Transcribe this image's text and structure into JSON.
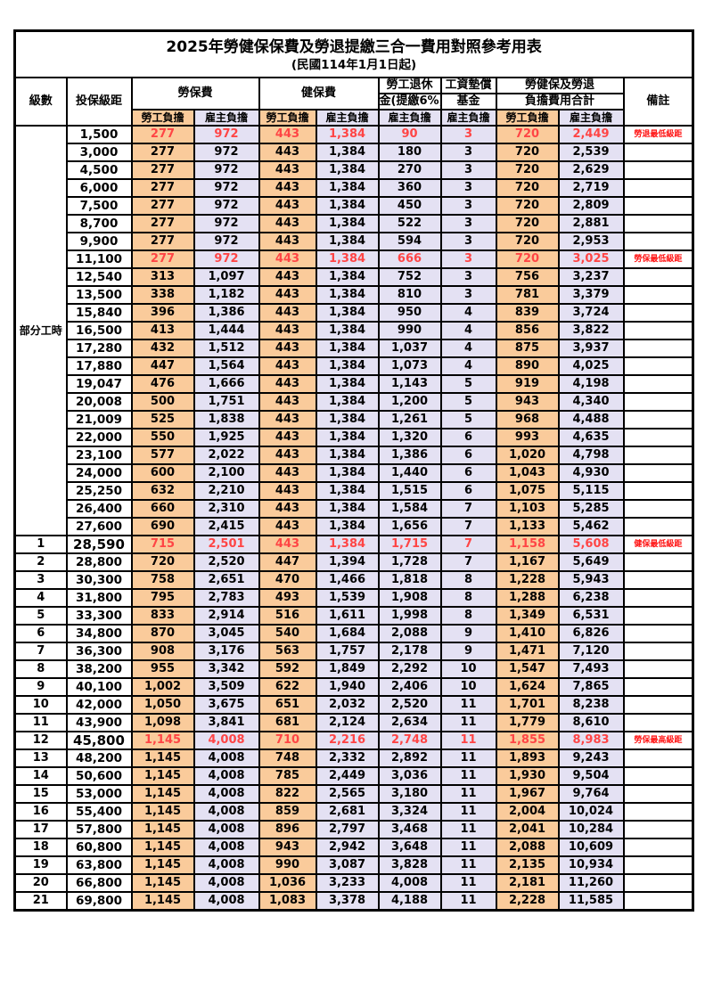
{
  "title": "2025年勞健保保費及勞退提繳三合一費用對照參考用表",
  "subtitle": "(民國114年1月1日起)",
  "header": {
    "level": "級數",
    "bracket": "投保級距",
    "labor_insurance": "勞保費",
    "health_insurance": "健保費",
    "pension_line1": "勞工退休",
    "pension_line2": "金(提繳6%)",
    "wage_fund_line1": "工資墊償",
    "wage_fund_line2": "基金",
    "total_line1": "勞健保及勞退",
    "total_line2": "負擔費用合計",
    "remark": "備註",
    "employee_share": "勞工負擔",
    "employer_share": "雇主負擔"
  },
  "part_time_label": "部分工時",
  "colors": {
    "employee_col_bg": "#FACB9B",
    "employer_col_bg": "#E4E1F3",
    "highlight_value": "#ff4545",
    "remark_red": "#ff1111",
    "border": "#000000"
  },
  "rows": [
    {
      "level": "",
      "bracket": "1,500",
      "li_emp": "277",
      "li_er": "972",
      "hi_emp": "443",
      "hi_er": "1,384",
      "pension": "90",
      "fund": "3",
      "tot_emp": "720",
      "tot_er": "2,449",
      "remark": "勞退最低級距",
      "highlight": true,
      "bold_bracket": false
    },
    {
      "level": "",
      "bracket": "3,000",
      "li_emp": "277",
      "li_er": "972",
      "hi_emp": "443",
      "hi_er": "1,384",
      "pension": "180",
      "fund": "3",
      "tot_emp": "720",
      "tot_er": "2,539",
      "remark": "",
      "highlight": false,
      "bold_bracket": false
    },
    {
      "level": "",
      "bracket": "4,500",
      "li_emp": "277",
      "li_er": "972",
      "hi_emp": "443",
      "hi_er": "1,384",
      "pension": "270",
      "fund": "3",
      "tot_emp": "720",
      "tot_er": "2,629",
      "remark": "",
      "highlight": false,
      "bold_bracket": false
    },
    {
      "level": "",
      "bracket": "6,000",
      "li_emp": "277",
      "li_er": "972",
      "hi_emp": "443",
      "hi_er": "1,384",
      "pension": "360",
      "fund": "3",
      "tot_emp": "720",
      "tot_er": "2,719",
      "remark": "",
      "highlight": false,
      "bold_bracket": false
    },
    {
      "level": "",
      "bracket": "7,500",
      "li_emp": "277",
      "li_er": "972",
      "hi_emp": "443",
      "hi_er": "1,384",
      "pension": "450",
      "fund": "3",
      "tot_emp": "720",
      "tot_er": "2,809",
      "remark": "",
      "highlight": false,
      "bold_bracket": false
    },
    {
      "level": "",
      "bracket": "8,700",
      "li_emp": "277",
      "li_er": "972",
      "hi_emp": "443",
      "hi_er": "1,384",
      "pension": "522",
      "fund": "3",
      "tot_emp": "720",
      "tot_er": "2,881",
      "remark": "",
      "highlight": false,
      "bold_bracket": false
    },
    {
      "level": "",
      "bracket": "9,900",
      "li_emp": "277",
      "li_er": "972",
      "hi_emp": "443",
      "hi_er": "1,384",
      "pension": "594",
      "fund": "3",
      "tot_emp": "720",
      "tot_er": "2,953",
      "remark": "",
      "highlight": false,
      "bold_bracket": false
    },
    {
      "level": "",
      "bracket": "11,100",
      "li_emp": "277",
      "li_er": "972",
      "hi_emp": "443",
      "hi_er": "1,384",
      "pension": "666",
      "fund": "3",
      "tot_emp": "720",
      "tot_er": "3,025",
      "remark": "勞保最低級距",
      "highlight": true,
      "bold_bracket": false
    },
    {
      "level": "",
      "bracket": "12,540",
      "li_emp": "313",
      "li_er": "1,097",
      "hi_emp": "443",
      "hi_er": "1,384",
      "pension": "752",
      "fund": "3",
      "tot_emp": "756",
      "tot_er": "3,237",
      "remark": "",
      "highlight": false,
      "bold_bracket": false
    },
    {
      "level": "",
      "bracket": "13,500",
      "li_emp": "338",
      "li_er": "1,182",
      "hi_emp": "443",
      "hi_er": "1,384",
      "pension": "810",
      "fund": "3",
      "tot_emp": "781",
      "tot_er": "3,379",
      "remark": "",
      "highlight": false,
      "bold_bracket": false
    },
    {
      "level": "",
      "bracket": "15,840",
      "li_emp": "396",
      "li_er": "1,386",
      "hi_emp": "443",
      "hi_er": "1,384",
      "pension": "950",
      "fund": "4",
      "tot_emp": "839",
      "tot_er": "3,724",
      "remark": "",
      "highlight": false,
      "bold_bracket": false
    },
    {
      "level": "",
      "bracket": "16,500",
      "li_emp": "413",
      "li_er": "1,444",
      "hi_emp": "443",
      "hi_er": "1,384",
      "pension": "990",
      "fund": "4",
      "tot_emp": "856",
      "tot_er": "3,822",
      "remark": "",
      "highlight": false,
      "bold_bracket": false
    },
    {
      "level": "",
      "bracket": "17,280",
      "li_emp": "432",
      "li_er": "1,512",
      "hi_emp": "443",
      "hi_er": "1,384",
      "pension": "1,037",
      "fund": "4",
      "tot_emp": "875",
      "tot_er": "3,937",
      "remark": "",
      "highlight": false,
      "bold_bracket": false
    },
    {
      "level": "",
      "bracket": "17,880",
      "li_emp": "447",
      "li_er": "1,564",
      "hi_emp": "443",
      "hi_er": "1,384",
      "pension": "1,073",
      "fund": "4",
      "tot_emp": "890",
      "tot_er": "4,025",
      "remark": "",
      "highlight": false,
      "bold_bracket": false
    },
    {
      "level": "",
      "bracket": "19,047",
      "li_emp": "476",
      "li_er": "1,666",
      "hi_emp": "443",
      "hi_er": "1,384",
      "pension": "1,143",
      "fund": "5",
      "tot_emp": "919",
      "tot_er": "4,198",
      "remark": "",
      "highlight": false,
      "bold_bracket": false
    },
    {
      "level": "",
      "bracket": "20,008",
      "li_emp": "500",
      "li_er": "1,751",
      "hi_emp": "443",
      "hi_er": "1,384",
      "pension": "1,200",
      "fund": "5",
      "tot_emp": "943",
      "tot_er": "4,340",
      "remark": "",
      "highlight": false,
      "bold_bracket": false
    },
    {
      "level": "",
      "bracket": "21,009",
      "li_emp": "525",
      "li_er": "1,838",
      "hi_emp": "443",
      "hi_er": "1,384",
      "pension": "1,261",
      "fund": "5",
      "tot_emp": "968",
      "tot_er": "4,488",
      "remark": "",
      "highlight": false,
      "bold_bracket": false
    },
    {
      "level": "",
      "bracket": "22,000",
      "li_emp": "550",
      "li_er": "1,925",
      "hi_emp": "443",
      "hi_er": "1,384",
      "pension": "1,320",
      "fund": "6",
      "tot_emp": "993",
      "tot_er": "4,635",
      "remark": "",
      "highlight": false,
      "bold_bracket": false
    },
    {
      "level": "",
      "bracket": "23,100",
      "li_emp": "577",
      "li_er": "2,022",
      "hi_emp": "443",
      "hi_er": "1,384",
      "pension": "1,386",
      "fund": "6",
      "tot_emp": "1,020",
      "tot_er": "4,798",
      "remark": "",
      "highlight": false,
      "bold_bracket": false
    },
    {
      "level": "",
      "bracket": "24,000",
      "li_emp": "600",
      "li_er": "2,100",
      "hi_emp": "443",
      "hi_er": "1,384",
      "pension": "1,440",
      "fund": "6",
      "tot_emp": "1,043",
      "tot_er": "4,930",
      "remark": "",
      "highlight": false,
      "bold_bracket": false
    },
    {
      "level": "",
      "bracket": "25,250",
      "li_emp": "632",
      "li_er": "2,210",
      "hi_emp": "443",
      "hi_er": "1,384",
      "pension": "1,515",
      "fund": "6",
      "tot_emp": "1,075",
      "tot_er": "5,115",
      "remark": "",
      "highlight": false,
      "bold_bracket": false
    },
    {
      "level": "",
      "bracket": "26,400",
      "li_emp": "660",
      "li_er": "2,310",
      "hi_emp": "443",
      "hi_er": "1,384",
      "pension": "1,584",
      "fund": "7",
      "tot_emp": "1,103",
      "tot_er": "5,285",
      "remark": "",
      "highlight": false,
      "bold_bracket": false
    },
    {
      "level": "",
      "bracket": "27,600",
      "li_emp": "690",
      "li_er": "2,415",
      "hi_emp": "443",
      "hi_er": "1,384",
      "pension": "1,656",
      "fund": "7",
      "tot_emp": "1,133",
      "tot_er": "5,462",
      "remark": "",
      "highlight": false,
      "bold_bracket": false
    },
    {
      "level": "1",
      "bracket": "28,590",
      "li_emp": "715",
      "li_er": "2,501",
      "hi_emp": "443",
      "hi_er": "1,384",
      "pension": "1,715",
      "fund": "7",
      "tot_emp": "1,158",
      "tot_er": "5,608",
      "remark": "健保最低級距",
      "highlight": true,
      "bold_bracket": true
    },
    {
      "level": "2",
      "bracket": "28,800",
      "li_emp": "720",
      "li_er": "2,520",
      "hi_emp": "447",
      "hi_er": "1,394",
      "pension": "1,728",
      "fund": "7",
      "tot_emp": "1,167",
      "tot_er": "5,649",
      "remark": "",
      "highlight": false,
      "bold_bracket": false
    },
    {
      "level": "3",
      "bracket": "30,300",
      "li_emp": "758",
      "li_er": "2,651",
      "hi_emp": "470",
      "hi_er": "1,466",
      "pension": "1,818",
      "fund": "8",
      "tot_emp": "1,228",
      "tot_er": "5,943",
      "remark": "",
      "highlight": false,
      "bold_bracket": false
    },
    {
      "level": "4",
      "bracket": "31,800",
      "li_emp": "795",
      "li_er": "2,783",
      "hi_emp": "493",
      "hi_er": "1,539",
      "pension": "1,908",
      "fund": "8",
      "tot_emp": "1,288",
      "tot_er": "6,238",
      "remark": "",
      "highlight": false,
      "bold_bracket": false
    },
    {
      "level": "5",
      "bracket": "33,300",
      "li_emp": "833",
      "li_er": "2,914",
      "hi_emp": "516",
      "hi_er": "1,611",
      "pension": "1,998",
      "fund": "8",
      "tot_emp": "1,349",
      "tot_er": "6,531",
      "remark": "",
      "highlight": false,
      "bold_bracket": false
    },
    {
      "level": "6",
      "bracket": "34,800",
      "li_emp": "870",
      "li_er": "3,045",
      "hi_emp": "540",
      "hi_er": "1,684",
      "pension": "2,088",
      "fund": "9",
      "tot_emp": "1,410",
      "tot_er": "6,826",
      "remark": "",
      "highlight": false,
      "bold_bracket": false
    },
    {
      "level": "7",
      "bracket": "36,300",
      "li_emp": "908",
      "li_er": "3,176",
      "hi_emp": "563",
      "hi_er": "1,757",
      "pension": "2,178",
      "fund": "9",
      "tot_emp": "1,471",
      "tot_er": "7,120",
      "remark": "",
      "highlight": false,
      "bold_bracket": false
    },
    {
      "level": "8",
      "bracket": "38,200",
      "li_emp": "955",
      "li_er": "3,342",
      "hi_emp": "592",
      "hi_er": "1,849",
      "pension": "2,292",
      "fund": "10",
      "tot_emp": "1,547",
      "tot_er": "7,493",
      "remark": "",
      "highlight": false,
      "bold_bracket": false
    },
    {
      "level": "9",
      "bracket": "40,100",
      "li_emp": "1,002",
      "li_er": "3,509",
      "hi_emp": "622",
      "hi_er": "1,940",
      "pension": "2,406",
      "fund": "10",
      "tot_emp": "1,624",
      "tot_er": "7,865",
      "remark": "",
      "highlight": false,
      "bold_bracket": false
    },
    {
      "level": "10",
      "bracket": "42,000",
      "li_emp": "1,050",
      "li_er": "3,675",
      "hi_emp": "651",
      "hi_er": "2,032",
      "pension": "2,520",
      "fund": "11",
      "tot_emp": "1,701",
      "tot_er": "8,238",
      "remark": "",
      "highlight": false,
      "bold_bracket": false
    },
    {
      "level": "11",
      "bracket": "43,900",
      "li_emp": "1,098",
      "li_er": "3,841",
      "hi_emp": "681",
      "hi_er": "2,124",
      "pension": "2,634",
      "fund": "11",
      "tot_emp": "1,779",
      "tot_er": "8,610",
      "remark": "",
      "highlight": false,
      "bold_bracket": false
    },
    {
      "level": "12",
      "bracket": "45,800",
      "li_emp": "1,145",
      "li_er": "4,008",
      "hi_emp": "710",
      "hi_er": "2,216",
      "pension": "2,748",
      "fund": "11",
      "tot_emp": "1,855",
      "tot_er": "8,983",
      "remark": "勞保最高級距",
      "highlight": true,
      "bold_bracket": true
    },
    {
      "level": "13",
      "bracket": "48,200",
      "li_emp": "1,145",
      "li_er": "4,008",
      "hi_emp": "748",
      "hi_er": "2,332",
      "pension": "2,892",
      "fund": "11",
      "tot_emp": "1,893",
      "tot_er": "9,243",
      "remark": "",
      "highlight": false,
      "bold_bracket": false
    },
    {
      "level": "14",
      "bracket": "50,600",
      "li_emp": "1,145",
      "li_er": "4,008",
      "hi_emp": "785",
      "hi_er": "2,449",
      "pension": "3,036",
      "fund": "11",
      "tot_emp": "1,930",
      "tot_er": "9,504",
      "remark": "",
      "highlight": false,
      "bold_bracket": false
    },
    {
      "level": "15",
      "bracket": "53,000",
      "li_emp": "1,145",
      "li_er": "4,008",
      "hi_emp": "822",
      "hi_er": "2,565",
      "pension": "3,180",
      "fund": "11",
      "tot_emp": "1,967",
      "tot_er": "9,764",
      "remark": "",
      "highlight": false,
      "bold_bracket": false
    },
    {
      "level": "16",
      "bracket": "55,400",
      "li_emp": "1,145",
      "li_er": "4,008",
      "hi_emp": "859",
      "hi_er": "2,681",
      "pension": "3,324",
      "fund": "11",
      "tot_emp": "2,004",
      "tot_er": "10,024",
      "remark": "",
      "highlight": false,
      "bold_bracket": false
    },
    {
      "level": "17",
      "bracket": "57,800",
      "li_emp": "1,145",
      "li_er": "4,008",
      "hi_emp": "896",
      "hi_er": "2,797",
      "pension": "3,468",
      "fund": "11",
      "tot_emp": "2,041",
      "tot_er": "10,284",
      "remark": "",
      "highlight": false,
      "bold_bracket": false
    },
    {
      "level": "18",
      "bracket": "60,800",
      "li_emp": "1,145",
      "li_er": "4,008",
      "hi_emp": "943",
      "hi_er": "2,942",
      "pension": "3,648",
      "fund": "11",
      "tot_emp": "2,088",
      "tot_er": "10,609",
      "remark": "",
      "highlight": false,
      "bold_bracket": false
    },
    {
      "level": "19",
      "bracket": "63,800",
      "li_emp": "1,145",
      "li_er": "4,008",
      "hi_emp": "990",
      "hi_er": "3,087",
      "pension": "3,828",
      "fund": "11",
      "tot_emp": "2,135",
      "tot_er": "10,934",
      "remark": "",
      "highlight": false,
      "bold_bracket": false
    },
    {
      "level": "20",
      "bracket": "66,800",
      "li_emp": "1,145",
      "li_er": "4,008",
      "hi_emp": "1,036",
      "hi_er": "3,233",
      "pension": "4,008",
      "fund": "11",
      "tot_emp": "2,181",
      "tot_er": "11,260",
      "remark": "",
      "highlight": false,
      "bold_bracket": false
    },
    {
      "level": "21",
      "bracket": "69,800",
      "li_emp": "1,145",
      "li_er": "4,008",
      "hi_emp": "1,083",
      "hi_er": "3,378",
      "pension": "4,188",
      "fund": "11",
      "tot_emp": "2,228",
      "tot_er": "11,585",
      "remark": "",
      "highlight": false,
      "bold_bracket": false
    }
  ]
}
